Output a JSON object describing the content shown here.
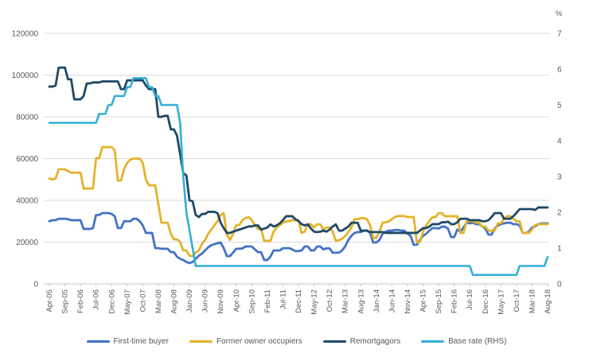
{
  "chart_data": {
    "type": "line",
    "title": "",
    "x_start": "Apr-05",
    "x_end": "Aug-18",
    "x_frequency": "monthly",
    "x_tick_step_months": 5,
    "x_tick_labels": [
      "Apr-05",
      "Sep-05",
      "Feb-06",
      "Jul-06",
      "Dec-06",
      "May-07",
      "Oct-07",
      "Mar-08",
      "Aug-08",
      "Jan-09",
      "Jun-09",
      "Nov-09",
      "Apr-10",
      "Sep-10",
      "Feb-11",
      "Jul-11",
      "Dec-11",
      "May-12",
      "Oct-12",
      "Mar-13",
      "Aug-13",
      "Jan-14",
      "Jun-14",
      "Nov-14",
      "Apr-15",
      "Sep-15",
      "Feb-16",
      "Jul-16",
      "Dec-16",
      "May-17",
      "Oct-17",
      "Mar-18",
      "Aug-18"
    ],
    "left_axis": {
      "label": "",
      "min": 0,
      "max": 120000,
      "ticks": [
        0,
        20000,
        40000,
        60000,
        80000,
        100000,
        120000
      ]
    },
    "right_axis": {
      "label": "%",
      "min": 0,
      "max": 7,
      "ticks": [
        0,
        1,
        2,
        3,
        4,
        5,
        6,
        7
      ]
    },
    "grid": "horizontal",
    "legend_position": "bottom",
    "colors": {
      "grid": "#DBDBDB",
      "axis_line": "#C6C6C6",
      "tick": "#C6C6C6",
      "text": "#595959"
    },
    "series": [
      {
        "name": "First-time buyer",
        "axis": "left",
        "color": "#4472C4",
        "width": 2.8,
        "values": [
          30000,
          30500,
          30500,
          31200,
          31200,
          31200,
          31000,
          30500,
          30500,
          30500,
          30500,
          26300,
          26300,
          26300,
          26700,
          33000,
          33000,
          33900,
          33900,
          33900,
          33500,
          32400,
          26700,
          26700,
          30000,
          30000,
          30000,
          31200,
          31200,
          30000,
          28000,
          24400,
          24400,
          24400,
          17100,
          17100,
          16800,
          16800,
          16800,
          15200,
          15200,
          13000,
          12000,
          11400,
          10500,
          9900,
          10500,
          12000,
          13500,
          14500,
          16000,
          17500,
          18500,
          19000,
          19500,
          19800,
          17100,
          13300,
          13300,
          15000,
          16800,
          16800,
          17000,
          17900,
          17900,
          17900,
          16500,
          15200,
          15200,
          11400,
          11400,
          13000,
          16000,
          16000,
          16000,
          17100,
          17100,
          17100,
          16500,
          15700,
          15700,
          16000,
          17900,
          17900,
          16000,
          16000,
          17900,
          17900,
          16500,
          17000,
          17000,
          14900,
          14900,
          15000,
          16000,
          18000,
          21000,
          23000,
          24400,
          24800,
          24800,
          25500,
          25500,
          24400,
          19800,
          19800,
          21000,
          24000,
          25000,
          25500,
          25500,
          25800,
          25800,
          25500,
          25500,
          24000,
          23000,
          18700,
          18700,
          21000,
          23000,
          24000,
          25500,
          26700,
          26700,
          26500,
          27400,
          27400,
          26500,
          22400,
          22400,
          26000,
          25000,
          27000,
          29300,
          29000,
          29300,
          28600,
          28600,
          27500,
          26500,
          23600,
          23600,
          26500,
          28000,
          28600,
          29000,
          29300,
          29300,
          28600,
          28600,
          28000,
          24400,
          24400,
          25000,
          27000,
          27500,
          28600,
          29000,
          29000,
          29000
        ]
      },
      {
        "name": "Former owner occupiers",
        "axis": "left",
        "color": "#E3B32A",
        "width": 2.8,
        "values": [
          50500,
          50000,
          50500,
          54900,
          54900,
          54900,
          54000,
          53300,
          53300,
          53300,
          53300,
          45700,
          45700,
          45700,
          45700,
          60200,
          60200,
          65500,
          65500,
          65500,
          65500,
          64000,
          49500,
          49500,
          55000,
          58000,
          59500,
          60000,
          60000,
          60000,
          58000,
          50000,
          47200,
          47200,
          47200,
          38000,
          29300,
          29300,
          29300,
          24000,
          21300,
          21300,
          20000,
          16000,
          16000,
          13500,
          13300,
          15000,
          16000,
          19000,
          21000,
          24000,
          26000,
          28000,
          30000,
          33000,
          33900,
          23600,
          21000,
          24000,
          28200,
          28200,
          30500,
          31500,
          32000,
          30500,
          28200,
          26300,
          26300,
          20600,
          20600,
          20600,
          25000,
          27000,
          28200,
          29300,
          30000,
          30000,
          30500,
          30500,
          30500,
          24400,
          25000,
          28600,
          28600,
          27000,
          28500,
          28500,
          26000,
          27000,
          27000,
          25000,
          20500,
          21000,
          21500,
          23000,
          24800,
          27000,
          31000,
          31000,
          31500,
          31500,
          31000,
          28000,
          22000,
          22000,
          25000,
          29300,
          29500,
          30000,
          31000,
          32000,
          32500,
          32500,
          32500,
          32000,
          32000,
          32000,
          20000,
          20000,
          25000,
          28000,
          30000,
          32000,
          32000,
          33900,
          33900,
          32400,
          32400,
          32400,
          32400,
          32400,
          24400,
          24400,
          30000,
          30000,
          30000,
          29300,
          29300,
          27400,
          27400,
          25500,
          25500,
          25500,
          29000,
          29000,
          31200,
          32400,
          32400,
          31200,
          30000,
          30000,
          24400,
          24400,
          24400,
          26000,
          28200,
          28600,
          28600,
          28600,
          28600
        ]
      },
      {
        "name": "Remortgagors",
        "axis": "left",
        "color": "#1F4966",
        "width": 2.8,
        "values": [
          94500,
          94500,
          95000,
          103600,
          103600,
          103600,
          98000,
          98000,
          88400,
          88400,
          88400,
          90000,
          96000,
          96000,
          96500,
          96500,
          96500,
          97000,
          97000,
          97000,
          97000,
          97000,
          97000,
          93300,
          93300,
          97500,
          97500,
          97500,
          97500,
          97500,
          97500,
          95000,
          93300,
          93300,
          93300,
          80000,
          80000,
          80500,
          80500,
          74000,
          74000,
          71000,
          62000,
          53000,
          52000,
          40000,
          39600,
          33000,
          32000,
          33500,
          33500,
          34500,
          34500,
          34500,
          33900,
          29300,
          26700,
          24400,
          24400,
          25000,
          25500,
          26000,
          26500,
          27000,
          27500,
          27500,
          28000,
          28000,
          26000,
          26500,
          27000,
          28500,
          27500,
          28000,
          29000,
          30500,
          32400,
          32400,
          32400,
          31000,
          30100,
          28600,
          28000,
          28500,
          26500,
          25000,
          24800,
          25000,
          25500,
          25000,
          26000,
          27500,
          28500,
          25500,
          25500,
          26500,
          27400,
          29300,
          29300,
          29300,
          25500,
          25500,
          25500,
          24800,
          24800,
          24800,
          24800,
          24800,
          24400,
          24400,
          24400,
          24400,
          24400,
          24400,
          24400,
          24400,
          24400,
          24400,
          24400,
          25500,
          26700,
          26700,
          27400,
          28600,
          28600,
          28600,
          29500,
          29500,
          29800,
          28600,
          28600,
          29500,
          31200,
          31200,
          31200,
          30500,
          30500,
          30500,
          30500,
          30000,
          30000,
          30500,
          32000,
          33900,
          33900,
          33900,
          31200,
          31200,
          31200,
          32400,
          34000,
          35800,
          35800,
          35800,
          35800,
          35800,
          35400,
          36600,
          36600,
          36600,
          36600
        ]
      },
      {
        "name": "Base rate (RHS)",
        "axis": "right",
        "color": "#31AFD6",
        "width": 2.6,
        "values": [
          4.5,
          4.5,
          4.5,
          4.5,
          4.5,
          4.5,
          4.5,
          4.5,
          4.5,
          4.5,
          4.5,
          4.5,
          4.5,
          4.5,
          4.5,
          4.5,
          4.75,
          4.75,
          4.75,
          5,
          5,
          5.25,
          5.25,
          5.25,
          5.25,
          5.5,
          5.5,
          5.75,
          5.75,
          5.75,
          5.75,
          5.75,
          5.5,
          5.5,
          5.25,
          5.25,
          5,
          5,
          5,
          5,
          5,
          5,
          4.5,
          3,
          2,
          1.5,
          1,
          0.5,
          0.5,
          0.5,
          0.5,
          0.5,
          0.5,
          0.5,
          0.5,
          0.5,
          0.5,
          0.5,
          0.5,
          0.5,
          0.5,
          0.5,
          0.5,
          0.5,
          0.5,
          0.5,
          0.5,
          0.5,
          0.5,
          0.5,
          0.5,
          0.5,
          0.5,
          0.5,
          0.5,
          0.5,
          0.5,
          0.5,
          0.5,
          0.5,
          0.5,
          0.5,
          0.5,
          0.5,
          0.5,
          0.5,
          0.5,
          0.5,
          0.5,
          0.5,
          0.5,
          0.5,
          0.5,
          0.5,
          0.5,
          0.5,
          0.5,
          0.5,
          0.5,
          0.5,
          0.5,
          0.5,
          0.5,
          0.5,
          0.5,
          0.5,
          0.5,
          0.5,
          0.5,
          0.5,
          0.5,
          0.5,
          0.5,
          0.5,
          0.5,
          0.5,
          0.5,
          0.5,
          0.5,
          0.5,
          0.5,
          0.5,
          0.5,
          0.5,
          0.5,
          0.5,
          0.5,
          0.5,
          0.5,
          0.5,
          0.5,
          0.5,
          0.5,
          0.5,
          0.5,
          0.5,
          0.25,
          0.25,
          0.25,
          0.25,
          0.25,
          0.25,
          0.25,
          0.25,
          0.25,
          0.25,
          0.25,
          0.25,
          0.25,
          0.25,
          0.25,
          0.5,
          0.5,
          0.5,
          0.5,
          0.5,
          0.5,
          0.5,
          0.5,
          0.5,
          0.75
        ]
      }
    ]
  }
}
